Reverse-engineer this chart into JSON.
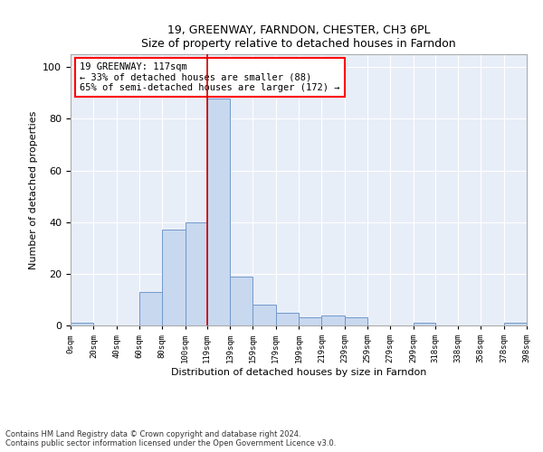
{
  "title1": "19, GREENWAY, FARNDON, CHESTER, CH3 6PL",
  "title2": "Size of property relative to detached houses in Farndon",
  "xlabel": "Distribution of detached houses by size in Farndon",
  "ylabel": "Number of detached properties",
  "bar_color": "#c8d8ef",
  "bar_edge_color": "#7099cc",
  "background_color": "#e8eef8",
  "annotation_text": "19 GREENWAY: 117sqm\n← 33% of detached houses are smaller (88)\n65% of semi-detached houses are larger (172) →",
  "vline_x": 119,
  "vline_color": "#cc0000",
  "bins": [
    0,
    20,
    40,
    60,
    80,
    100,
    119,
    139,
    159,
    179,
    199,
    219,
    239,
    259,
    279,
    299,
    318,
    338,
    358,
    378,
    398
  ],
  "counts": [
    1,
    0,
    0,
    13,
    37,
    40,
    88,
    19,
    8,
    5,
    3,
    4,
    3,
    0,
    0,
    1,
    0,
    0,
    0,
    1
  ],
  "ylim": [
    0,
    105
  ],
  "yticks": [
    0,
    20,
    40,
    60,
    80,
    100
  ],
  "xlim": [
    0,
    398
  ],
  "footnote1": "Contains HM Land Registry data © Crown copyright and database right 2024.",
  "footnote2": "Contains public sector information licensed under the Open Government Licence v3.0.",
  "xtick_labels": [
    "0sqm",
    "20sqm",
    "40sqm",
    "60sqm",
    "80sqm",
    "100sqm",
    "119sqm",
    "139sqm",
    "159sqm",
    "179sqm",
    "199sqm",
    "219sqm",
    "239sqm",
    "259sqm",
    "279sqm",
    "299sqm",
    "318sqm",
    "338sqm",
    "358sqm",
    "378sqm",
    "398sqm"
  ]
}
